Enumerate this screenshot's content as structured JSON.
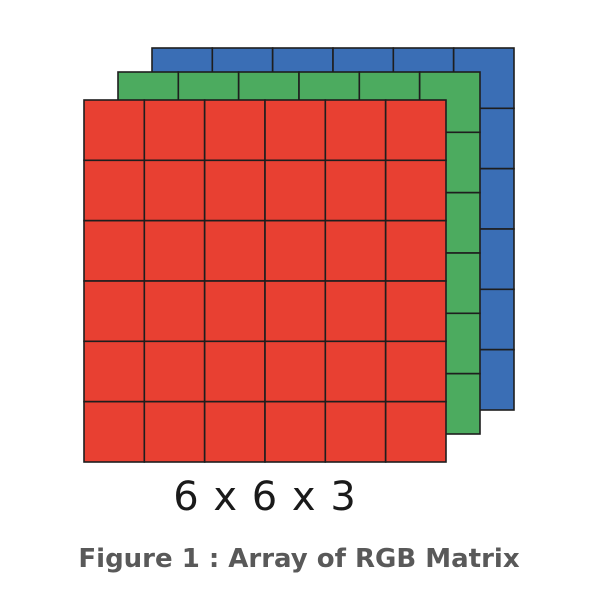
{
  "diagram": {
    "grid": {
      "rows": 6,
      "cols": 6
    },
    "channels": [
      {
        "name": "Blue",
        "color": "#3a6eb5"
      },
      {
        "name": "Green",
        "color": "#4cab5f"
      },
      {
        "name": "Red",
        "color": "#e84032"
      }
    ],
    "line_color": "#1e1e1e",
    "dimensions_label": "6 x 6 x 3"
  },
  "caption": "Figure 1 : Array of RGB Matrix"
}
